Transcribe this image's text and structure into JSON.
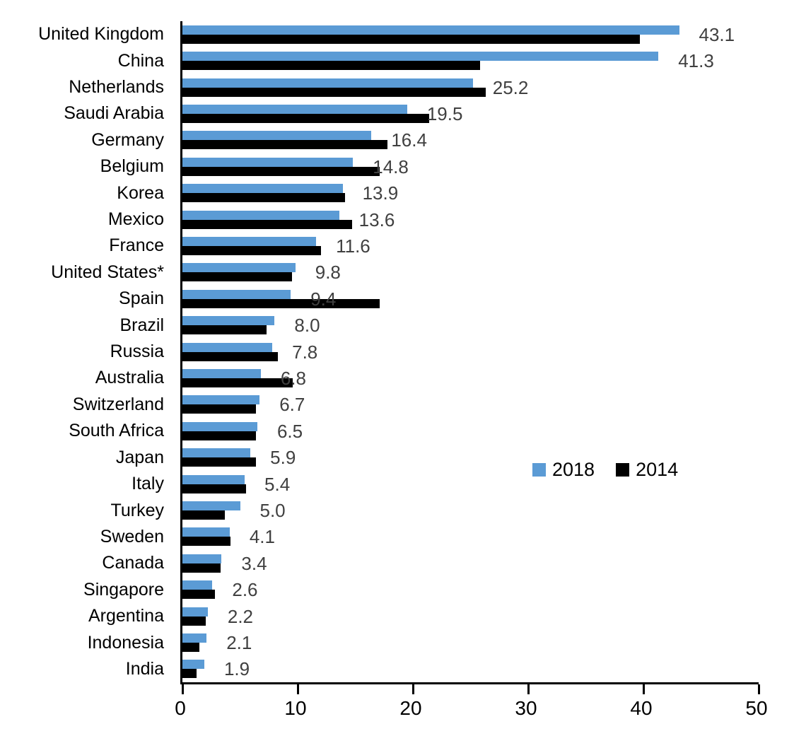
{
  "chart_data": {
    "type": "bar",
    "orientation": "horizontal",
    "title": "",
    "xlabel": "",
    "ylabel": "",
    "xlim": [
      0,
      50
    ],
    "x_ticks": [
      "0",
      "10",
      "20",
      "30",
      "40",
      "50"
    ],
    "grid": false,
    "legend_position": "middle-right",
    "categories": [
      "United Kingdom",
      "China",
      "Netherlands",
      "Saudi Arabia",
      "Germany",
      "Belgium",
      "Korea",
      "Mexico",
      "France",
      "United States*",
      "Spain",
      "Brazil",
      "Russia",
      "Australia",
      "Switzerland",
      "South Africa",
      "Japan",
      "Italy",
      "Turkey",
      "Sweden",
      "Canada",
      "Singapore",
      "Argentina",
      "Indonesia",
      "India"
    ],
    "series": [
      {
        "name": "2018",
        "color": "#5B9BD5",
        "values": [
          43.1,
          41.3,
          25.2,
          19.5,
          16.4,
          14.8,
          13.9,
          13.6,
          11.6,
          9.8,
          9.4,
          8.0,
          7.8,
          6.8,
          6.7,
          6.5,
          5.9,
          5.4,
          5.0,
          4.1,
          3.4,
          2.6,
          2.2,
          2.1,
          1.9
        ]
      },
      {
        "name": "2014",
        "color": "#000000",
        "values": [
          39.7,
          25.8,
          26.3,
          21.4,
          17.8,
          17.1,
          14.1,
          14.7,
          12.0,
          9.5,
          17.1,
          7.3,
          8.3,
          9.6,
          6.4,
          6.4,
          6.4,
          5.5,
          3.7,
          4.2,
          3.3,
          2.8,
          2.0,
          1.5,
          1.2
        ]
      }
    ],
    "value_labels": [
      "43.1",
      "41.3",
      "25.2",
      "19.5",
      "16.4",
      "14.8",
      "13.9",
      "13.6",
      "11.6",
      "9.8",
      "9.4",
      "8.0",
      "7.8",
      "6.8",
      "6.7",
      "6.5",
      "5.9",
      "5.4",
      "5.0",
      "4.1",
      "3.4",
      "2.6",
      "2.2",
      "2.1",
      "1.9"
    ],
    "value_labels_series": "2018"
  },
  "legend": {
    "items": [
      {
        "label": "2018",
        "color": "#5B9BD5"
      },
      {
        "label": "2014",
        "color": "#000000"
      }
    ]
  },
  "colors": {
    "bar_2018": "#5B9BD5",
    "bar_2014": "#000000",
    "value_label_text": "#404040",
    "axis": "#000000",
    "background": "#ffffff"
  }
}
